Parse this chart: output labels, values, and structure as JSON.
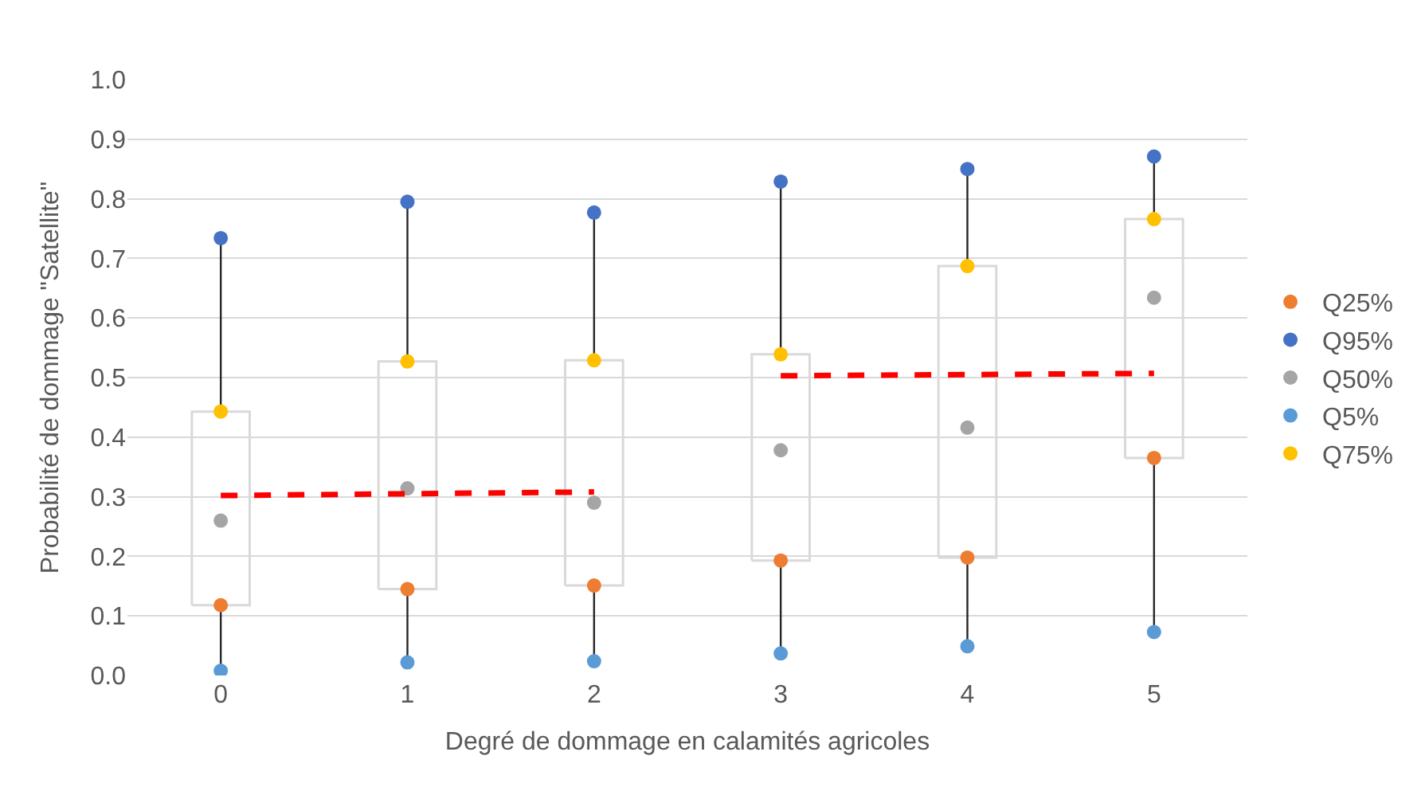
{
  "chart_data": {
    "type": "box",
    "xlabel": "Degré de dommage en calamités agricoles",
    "ylabel": "Probabilité de dommage \"Satellite\"",
    "categories": [
      "0",
      "1",
      "2",
      "3",
      "4",
      "5"
    ],
    "boxes": [
      {
        "low": 0.008,
        "q1": 0.118,
        "q3": 0.443,
        "high": 0.734
      },
      {
        "low": 0.022,
        "q1": 0.145,
        "q3": 0.527,
        "high": 0.795
      },
      {
        "low": 0.024,
        "q1": 0.151,
        "q3": 0.529,
        "high": 0.777
      },
      {
        "low": 0.037,
        "q1": 0.193,
        "q3": 0.539,
        "high": 0.829
      },
      {
        "low": 0.049,
        "q1": 0.198,
        "q3": 0.687,
        "high": 0.85
      },
      {
        "low": 0.073,
        "q1": 0.365,
        "q3": 0.766,
        "high": 0.871
      }
    ],
    "series": [
      {
        "type": "scatter",
        "name": "Q25%",
        "color": "#ed7d31",
        "values": [
          0.118,
          0.145,
          0.151,
          0.193,
          0.198,
          0.365
        ]
      },
      {
        "type": "scatter",
        "name": "Q95%",
        "color": "#4472c4",
        "values": [
          0.734,
          0.795,
          0.777,
          0.829,
          0.85,
          0.871
        ]
      },
      {
        "type": "scatter",
        "name": "Q50%",
        "color": "#a5a5a5",
        "values": [
          0.26,
          0.314,
          0.29,
          0.378,
          0.416,
          0.634
        ]
      },
      {
        "type": "scatter",
        "name": "Q5%",
        "color": "#5b9bd5",
        "values": [
          0.008,
          0.022,
          0.024,
          0.037,
          0.049,
          0.073
        ]
      },
      {
        "type": "scatter",
        "name": "Q75%",
        "color": "#ffc000",
        "values": [
          0.443,
          0.527,
          0.529,
          0.539,
          0.687,
          0.766
        ]
      },
      {
        "type": "line",
        "color": "#ff0000",
        "line_style": "dashed",
        "marker": "none",
        "values": [
          0.302,
          0.305,
          0.308,
          null,
          null,
          null
        ]
      },
      {
        "type": "line",
        "color": "#ff0000",
        "line_style": "dashed",
        "marker": "none",
        "values": [
          null,
          null,
          null,
          0.503,
          0.505,
          0.507
        ]
      }
    ],
    "ylim": [
      0,
      1
    ],
    "yticks": [
      {
        "value": 0,
        "label": "0.0"
      },
      {
        "value": 0.1,
        "label": "0.1"
      },
      {
        "value": 0.2,
        "label": "0.2"
      },
      {
        "value": 0.3,
        "label": "0.3"
      },
      {
        "value": 0.4,
        "label": "0.4"
      },
      {
        "value": 0.5,
        "label": "0.5"
      },
      {
        "value": 0.6,
        "label": "0.6"
      },
      {
        "value": 0.7,
        "label": "0.7"
      },
      {
        "value": 0.8,
        "label": "0.8"
      },
      {
        "value": 0.9,
        "label": "0.9"
      },
      {
        "value": 1,
        "label": "1.0"
      }
    ],
    "grid": "y",
    "legend": "right",
    "marker": "circle"
  }
}
